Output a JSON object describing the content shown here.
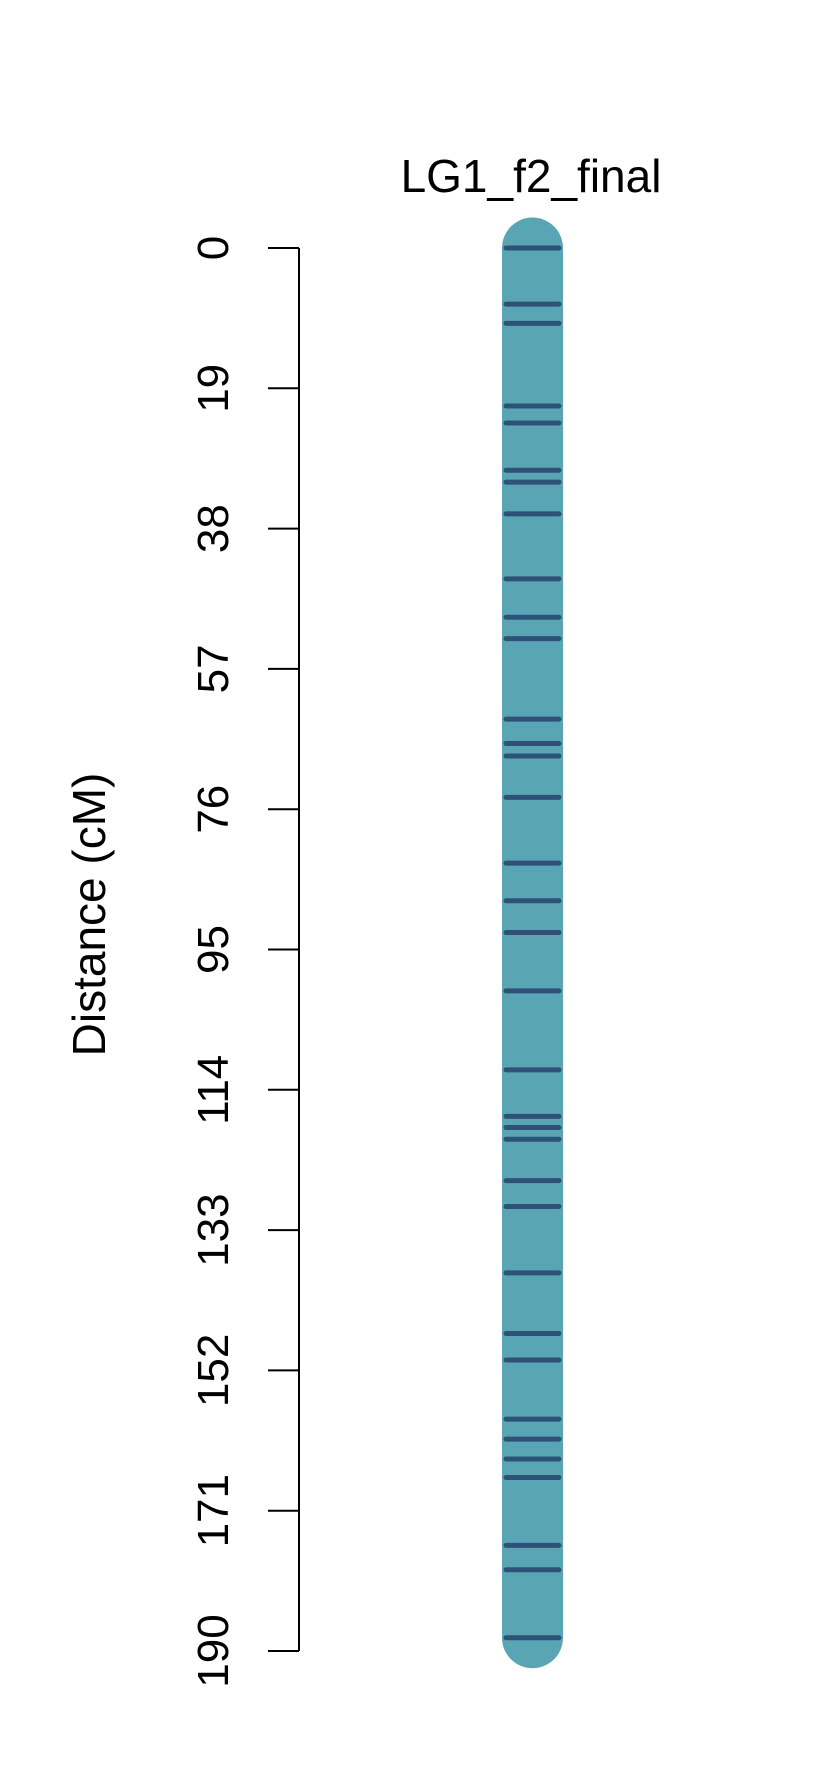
{
  "chart_data": {
    "type": "linkage-map",
    "title": "LG1_f2_final",
    "ylabel": "Distance (cM)",
    "ylim": [
      0,
      190
    ],
    "yticks": [
      "0",
      "19",
      "38",
      "57",
      "76",
      "95",
      "114",
      "133",
      "152",
      "171",
      "190"
    ],
    "y_reversed": true,
    "grid": false,
    "linkage_group": {
      "name": "LG1_f2_final",
      "length": 188.2,
      "markers": [
        0.0,
        7.6,
        10.2,
        21.4,
        23.7,
        30.1,
        31.7,
        36.0,
        44.8,
        50.0,
        52.9,
        63.8,
        67.1,
        68.8,
        74.4,
        83.3,
        88.4,
        92.7,
        100.6,
        111.3,
        117.6,
        119.1,
        120.7,
        126.3,
        129.8,
        138.8,
        147.0,
        150.6,
        158.6,
        161.3,
        164.0,
        166.5,
        175.7,
        179.0,
        188.2
      ]
    },
    "colors": {
      "chromosome": "#5aa5b3",
      "marker": "#2e5178",
      "axis": "#000000"
    }
  }
}
